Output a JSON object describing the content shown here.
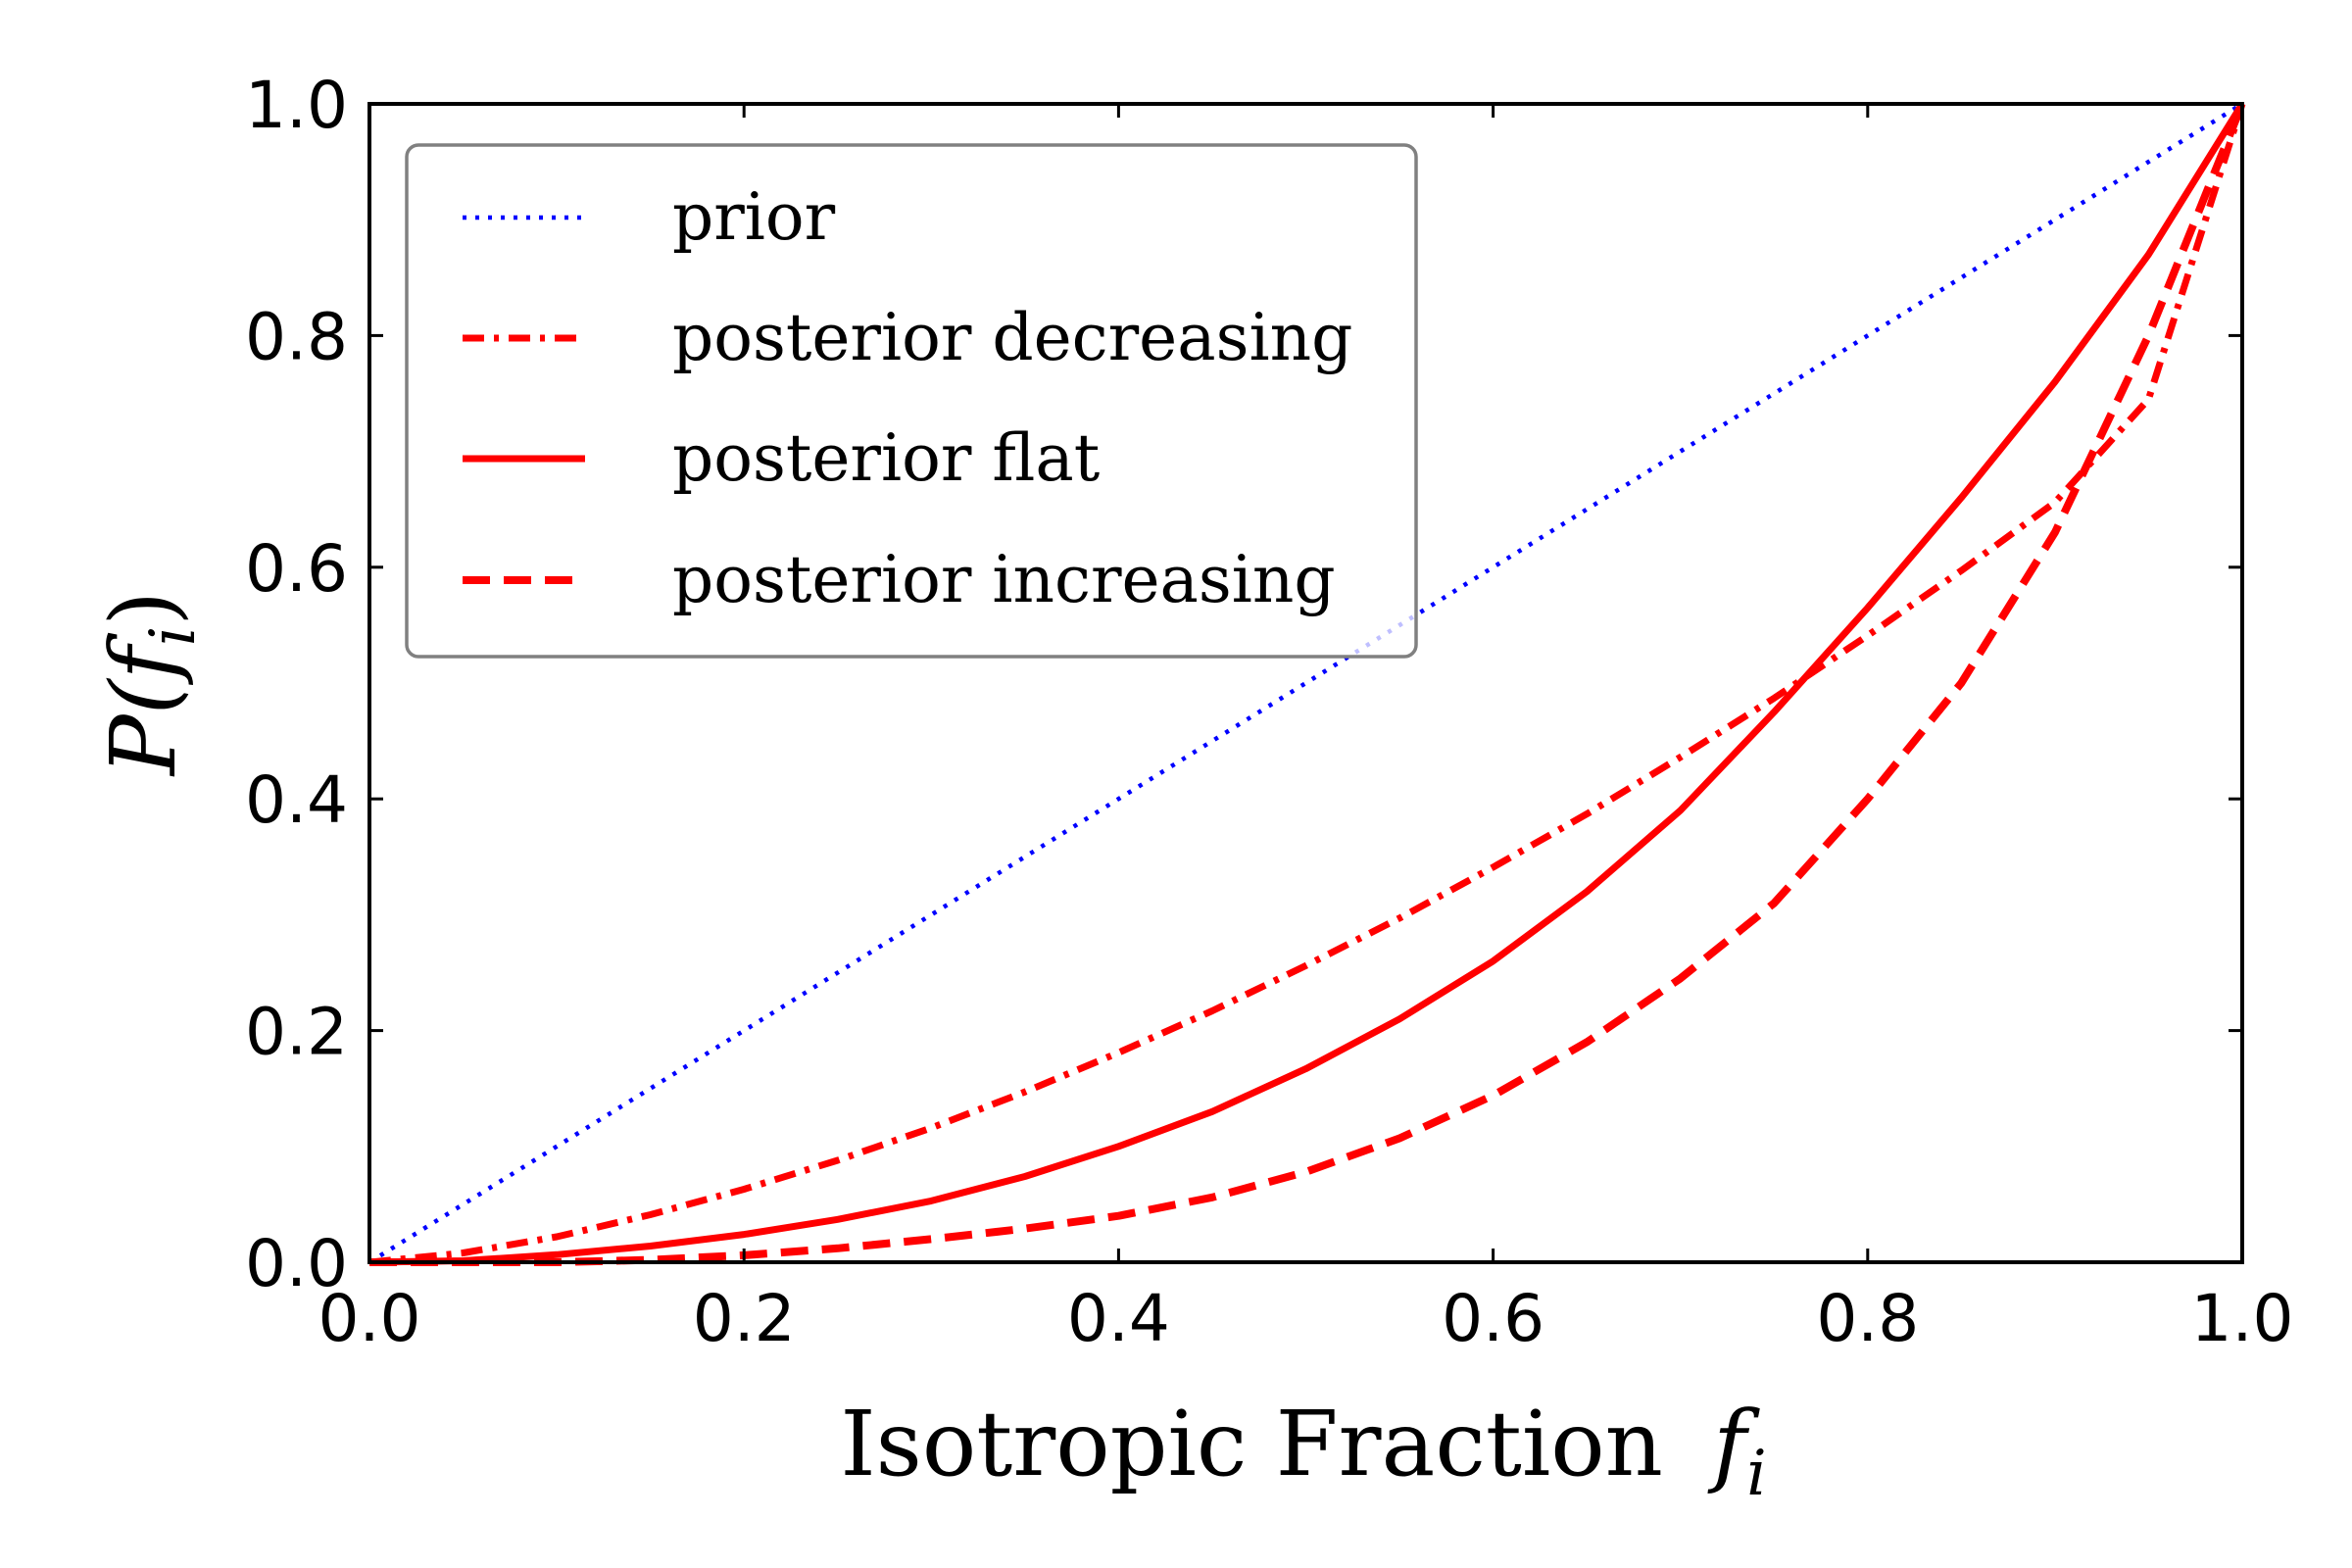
{
  "chart_data": {
    "type": "line",
    "xlabel": "Isotropic Fraction",
    "xlabel_symbol": "f",
    "xlabel_subscript": "i",
    "ylabel": "P(f",
    "ylabel_subscript": "i",
    "ylabel_close": ")",
    "xlim": [
      0.0,
      1.0
    ],
    "ylim": [
      0.0,
      1.0
    ],
    "xticks": [
      "0.0",
      "0.2",
      "0.4",
      "0.6",
      "0.8",
      "1.0"
    ],
    "yticks": [
      "0.0",
      "0.2",
      "0.4",
      "0.6",
      "0.8",
      "1.0"
    ],
    "grid": false,
    "legend_position": "top-left",
    "x": [
      0.0,
      0.05,
      0.1,
      0.15,
      0.2,
      0.25,
      0.3,
      0.35,
      0.4,
      0.45,
      0.5,
      0.55,
      0.6,
      0.65,
      0.7,
      0.75,
      0.8,
      0.85,
      0.9,
      0.95,
      1.0
    ],
    "series": [
      {
        "name": "prior",
        "color": "#0000ff",
        "style": "dotted",
        "values": [
          0.0,
          0.05,
          0.1,
          0.15,
          0.2,
          0.25,
          0.3,
          0.35,
          0.4,
          0.45,
          0.5,
          0.55,
          0.6,
          0.65,
          0.7,
          0.75,
          0.8,
          0.85,
          0.9,
          0.95,
          1.0
        ]
      },
      {
        "name": "posterior decreasing",
        "color": "#ff0000",
        "style": "dashdot",
        "values": [
          0.0,
          0.008,
          0.022,
          0.041,
          0.063,
          0.088,
          0.116,
          0.147,
          0.181,
          0.217,
          0.256,
          0.297,
          0.341,
          0.387,
          0.436,
          0.487,
          0.541,
          0.597,
          0.656,
          0.745,
          1.0
        ]
      },
      {
        "name": "posterior flat",
        "color": "#ff0000",
        "style": "solid",
        "values": [
          0.0,
          0.0013,
          0.0065,
          0.014,
          0.024,
          0.037,
          0.053,
          0.074,
          0.1,
          0.13,
          0.167,
          0.21,
          0.26,
          0.32,
          0.39,
          0.475,
          0.565,
          0.66,
          0.76,
          0.87,
          1.0
        ]
      },
      {
        "name": "posterior increasing",
        "color": "#ff0000",
        "style": "dashed",
        "values": [
          0.0,
          0.0,
          0.0,
          0.002,
          0.006,
          0.012,
          0.02,
          0.029,
          0.04,
          0.056,
          0.078,
          0.107,
          0.144,
          0.19,
          0.245,
          0.31,
          0.4,
          0.5,
          0.63,
          0.8,
          1.0
        ]
      }
    ]
  }
}
